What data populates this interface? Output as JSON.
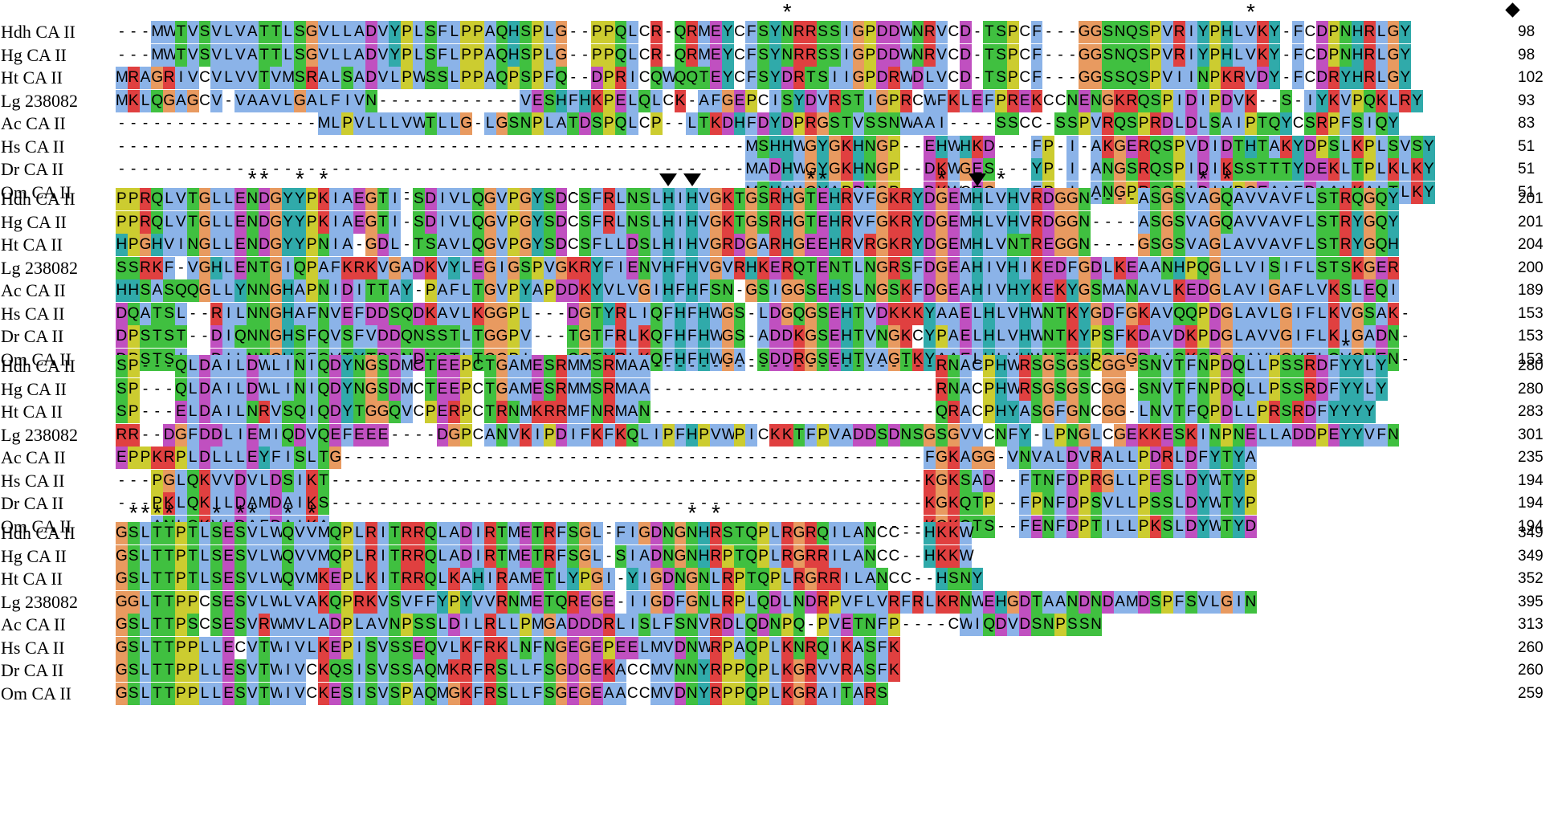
{
  "alignment": {
    "colors": {
      "A": "#8bb3e8",
      "I": "#8bb3e8",
      "L": "#8bb3e8",
      "M": "#8bb3e8",
      "F": "#8bb3e8",
      "W": "#8bb3e8",
      "V": "#8bb3e8",
      "C": "#ffffff",
      "K": "#e04040",
      "R": "#e04040",
      "E": "#c050c0",
      "D": "#c050c0",
      "N": "#40c040",
      "Q": "#40c040",
      "S": "#40c040",
      "T": "#40c040",
      "G": "#e89a60",
      "P": "#cccc30",
      "H": "#30aaaa",
      "Y": "#30aaaa"
    },
    "blocks": [
      {
        "rows": [
          {
            "name": "Hdh CA II",
            "seq": "---MWTVSVLVATTLSGVLLADVYPLSFLPPAQHSPLG--PPQLCR-QRMEYCFSYNRRSSIGPDDWNRVCD-TSPCF---GGSNQSPVRIYPHLVKY-FCDPNHRLGY",
            "end": "98"
          },
          {
            "name": "Hg CA II",
            "seq": "---MWTVSVLVATTLSGVLLADVYPLSFLPPAQHSPLG--PPQLCR-QRMEYCFSYNRRSSIGPDDWNRVCD-TSPCF---GGSNQSPVRIYPHLVKY-FCDPNHRLGY",
            "end": "98"
          },
          {
            "name": "Ht CA II",
            "seq": "MRAGRIVCVLVVTVMSRALSADVLPWSSLPPAQPSPFQ--DPRICQWQQTEYCFSYDRTSIIGPDRWDLVCD-TSPCF---GGSSQSPVIINPKRVDY-FCDRYHRLGY",
            "end": "102"
          },
          {
            "name": "Lg 238082",
            "seq": "MKLQGAGCV-VAAVLGALFIVN------------VESHFHKPELQLCK-AFGEPCISYDVRSTIGPRCWFKLEFPREKCCNENGKRQSPIDIPDVK--S-IYKVPQKLRY",
            "end": "93"
          },
          {
            "name": "Ac CA II",
            "seq": "-----------------MLPVLLLVWTLLG-LGSNPLATDSPQLCP--LTKDHFDYDPRGSTVSSNWAAI----SSCC-SSPVRQSPRDLDLSAIPTQYCSRPFSIQY",
            "end": "83"
          },
          {
            "name": "Hs CA II",
            "seq": "-----------------------------------------------------MSHHWGYGKHNGP--EHWHKD---FP-I-AKGERQSPVDIDTHTAKYDPSLKPLSVSY",
            "end": "51"
          },
          {
            "name": "Dr CA II",
            "seq": "-----------------------------------------------------MADHWGYGKHNGP--DKWGES---YP-I-ANGSRQSPIDIKSSTTTYDEKLTPLKLKY",
            "end": "51"
          },
          {
            "name": "Om CA II",
            "seq": "-----------------------------------------------------MSHAWGYAPDNGP--DKWCEG---FP-I-ANGPRQSPIDIVPGEAAFDAALKALTLKY",
            "end": "51"
          }
        ],
        "marks": [
          {
            "sym": "*",
            "col": 56
          },
          {
            "sym": "*",
            "col": 95
          },
          {
            "sym": "diamond",
            "col": 117
          }
        ]
      },
      {
        "rows": [
          {
            "name": "Hdh CA II",
            "seq": "PPRQLVTGLLENDGYYPKIAEGTI-SDIVLQGVPGYSDCSFRLNSLHIHVGKTGSRHGTEHRVFGKRYDGEMHLVHVRDGGN----ASGSVAGQAVVAVFLSTRQGQY",
            "end": "201"
          },
          {
            "name": "Hg CA II",
            "seq": "PPRQLVTGLLENDGYYPKIAEGTI-SDIVLQGVPGYSDCSFRLNSLHIHVGKTGSRHGTEHRVFGKRYDGEMHLVHVRDGGN----ASGSVAGQAVVAVFLSTRYGQY",
            "end": "201"
          },
          {
            "name": "Ht CA II",
            "seq": "HPGHVINGLLENDGYYPNIA-GDL-TSAVLQGVPGYSDCSFLLDSLHIHVGRDGARHGEEHRVRGKRYDGEMHLVNTREGGN----GSGSVAGLAVVAVFLSTRYGQH",
            "end": "204"
          },
          {
            "name": "Lg 238082",
            "seq": "SSRKF-VGHLENTGIQPAFKRKVGADKVYLEGIGSPVGKRYFIENVHFHVGVRHKERQTENTLNGRSFDGEAHIVHIKEDFGDLKEAANHPQGLLVISIFLSTSKGER",
            "end": "200"
          },
          {
            "name": "Ac CA II",
            "seq": "HHSASQQGLLYNNGHAPNIDITTAY-PAFLTGVPYAPDDKYVLVGIHFHFSN-GSIGGSEHSLNGSKFDGEAHIVHYKEKYGSMANAVLKEDGLAVIGAFLVKSLEQI",
            "end": "189"
          },
          {
            "name": "Hs CA II",
            "seq": "DQATSL--RILNNGHAFNVEFDDSQDKAVLKGGPL---DGTYRLIQFHFHWGS-LDGQGSEHTVDKKKYAAELHLVHWNTKYGDFGKAVQQPDGLAVLGIFLKVGSAK-",
            "end": "153"
          },
          {
            "name": "Dr CA II",
            "seq": "DPSTST--DIQNNGHSFQVSFVDDQNSSTLTGGPV---TGTFRLKQFHFHWGS-ADDKGSEHTVNGKCYPAELHLVHWNTKYPSFKDAVDKPDGLAVVGIFLKIGADN-",
            "end": "153"
          },
          {
            "name": "Om CA II",
            "seq": "DPSTSI--DILNNGHSFQVTYTDDNDNSTLTGGPI---SGTYRLKQFHFHWGA-SDDRGSEHTVAGTKYAAELHLVHWNTKYPSFGDAASKSDGLAVVGVFLQVGNEN-",
            "end": "153"
          }
        ],
        "marks": [
          {
            "sym": "*",
            "col": 11
          },
          {
            "sym": "*",
            "col": 12
          },
          {
            "sym": "*",
            "col": 15
          },
          {
            "sym": "*",
            "col": 17
          },
          {
            "sym": "triangle",
            "col": 46
          },
          {
            "sym": "triangle",
            "col": 48
          },
          {
            "sym": "*",
            "col": 58
          },
          {
            "sym": "*",
            "col": 59
          },
          {
            "sym": "*",
            "col": 69
          },
          {
            "sym": "triangle",
            "col": 72
          },
          {
            "sym": "*",
            "col": 74
          },
          {
            "sym": "*",
            "col": 91
          },
          {
            "sym": "*",
            "col": 93
          }
        ]
      },
      {
        "rows": [
          {
            "name": "Hdh CA II",
            "seq": "SP---QLDAILDWLINIQDYNGSDMCTEEPCTGAMESRMMSRMAA------------------------RNACPHWRSGSGSCGG-SNVTFNPDQLLPSSRDFYYLY",
            "end": "280"
          },
          {
            "name": "Hg CA II",
            "seq": "SP---QLDAILDWLINIQDYNGSDMCTEEPCTGAMESRMMSRMAA------------------------RNACPHWRSGSGSCGG-SNVTFNPDQLLPSSRDFYYLY",
            "end": "280"
          },
          {
            "name": "Ht CA II",
            "seq": "SP---ELDAILNRVSQIQDYTGGQVCPERPCTRNMKRRMFNRMAN------------------------QRACPHYASGFGNCGG-LNVTFQPDLLPRSRDFYYYY",
            "end": "283"
          },
          {
            "name": "Lg 238082",
            "seq": "RR--DGFDDLIEMIQDVQEFEEE----DGPCANVKIPDIFKFKQLIPFHPVWPICKKTFPVADDSDNSGSGVVCNFY-LPNGLCGEKKESKINPNELLADDPEYYVFN",
            "end": "301"
          },
          {
            "name": "Ac CA II",
            "seq": "EPPKRPLDLLLEYFISLTG-------------------------------------------------FGKAGG-VNVALDVRALLPDRLDFYTYA",
            "end": "235"
          },
          {
            "name": "Hs CA II",
            "seq": "---PGLQKVVDVLDSIKT--------------------------------------------------KGKSAD--FTNFDPRGLLPESLDYWTYP",
            "end": "194"
          },
          {
            "name": "Dr CA II",
            "seq": "---PKLQKILDAMDAIKS--------------------------------------------------KGKQTP--FPNFDPSVLLPSSLDYWTYP",
            "end": "194"
          },
          {
            "name": "Om CA II",
            "seq": "---ANLQKVLDAFDAIKA--------------------------------------------------KGKQTS--FENFDPTILLPKSLDYWTYD",
            "end": "194"
          }
        ],
        "marks": [
          {
            "sym": "*",
            "col": 103
          }
        ]
      },
      {
        "rows": [
          {
            "name": "Hdh CA II",
            "seq": "GSLTTPTLSESVLWQVVMQPLRITRRQLADIRTMETRFSGL-FIGDNGNHRSTQPLRGRQILANCC--HKKW",
            "end": "349"
          },
          {
            "name": "Hg CA II",
            "seq": "GSLTTPTLSESVLWQVVMQPLRITRRQLADIRTMETRFSGL-SIADNGNHRPTQPLRGRRILANCC--HKKW",
            "end": "349"
          },
          {
            "name": "Ht CA II",
            "seq": "GSLTTPTLSESVLWQVMKEPLKITRRQLKAHIRAMETLYPGI-YIGDNGNLRPTQPLRGRRILANCC--HSNY",
            "end": "352"
          },
          {
            "name": "Lg 238082",
            "seq": "GGLTTPPCSESVLWLVAKQPRKVSVFFYPYVVRNMETQREGE-IIGDFGNLRPLQDLNDRPVFLVRFRLKRNWEHGDTAANDNDAMDSPFSVLGIN",
            "end": "395"
          },
          {
            "name": "Ac CA II",
            "seq": "GSLTTPSCSESVRWMVLADPLAVNPSSLDILRLLPMGADDDRLISLFSNVRDLQDNPQ-PVETNFP----CWIQDVDSNPSSN",
            "end": "313"
          },
          {
            "name": "Hs CA II",
            "seq": "GSLTTPPLLECVTWIVLKEPISVSSEQVLKFRKLNFNGEGEPEELMVDNWRPAQPLKNRQIKASFK",
            "end": "260"
          },
          {
            "name": "Dr CA II",
            "seq": "GSLTTPPLLESVTWIVCKQSISVSSAQMKRFRSLLFSGDGEKACCMVNNYRPPQPLKGRVVRASFK",
            "end": "260"
          },
          {
            "name": "Om CA II",
            "seq": "GSLTTPPLLESVTWIVCKESISVSPAQMGKFRSLLFSGEGEAACCMVDNYRPPQPLKGRAITARS",
            "end": "259"
          }
        ],
        "marks": [
          {
            "sym": "*",
            "col": 1
          },
          {
            "sym": "*",
            "col": 2
          },
          {
            "sym": "*",
            "col": 3
          },
          {
            "sym": "*",
            "col": 4
          },
          {
            "sym": "*",
            "col": 8
          },
          {
            "sym": "*",
            "col": 10
          },
          {
            "sym": "*",
            "col": 11
          },
          {
            "sym": "*",
            "col": 14
          },
          {
            "sym": "*",
            "col": 16
          },
          {
            "sym": "*",
            "col": 48
          },
          {
            "sym": "*",
            "col": 50
          }
        ]
      }
    ]
  }
}
